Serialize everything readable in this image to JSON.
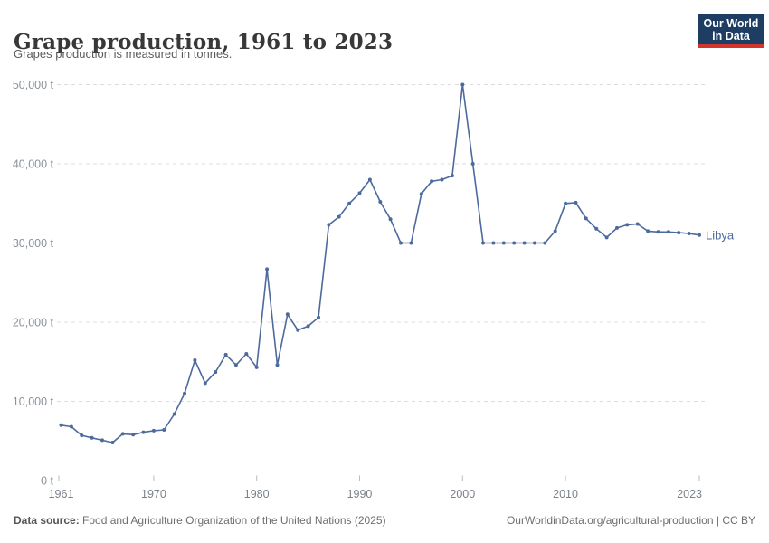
{
  "header": {
    "title": "Grape production, 1961 to 2023",
    "subtitle": "Grapes production is measured in tonnes.",
    "logo_line1": "Our World",
    "logo_line2": "in Data"
  },
  "chart_data": {
    "type": "line",
    "title": "Grape production, 1961 to 2023",
    "ylabel": "",
    "xlabel": "",
    "unit": "tonnes",
    "grid": "horizontal dashed",
    "legend_position": "end-of-line entity label",
    "series_label": "Libya",
    "xlim": [
      1961,
      2023
    ],
    "ylim": [
      0,
      50000
    ],
    "xticks": [
      1961,
      1970,
      1980,
      1990,
      2000,
      2010,
      2023
    ],
    "yticks": [
      0,
      10000,
      20000,
      30000,
      40000,
      50000
    ],
    "ytick_labels": [
      "0 t",
      "10,000 t",
      "20,000 t",
      "30,000 t",
      "40,000 t",
      "50,000 t"
    ],
    "x": [
      1961,
      1962,
      1963,
      1964,
      1965,
      1966,
      1967,
      1968,
      1969,
      1970,
      1971,
      1972,
      1973,
      1974,
      1975,
      1976,
      1977,
      1978,
      1979,
      1980,
      1981,
      1982,
      1983,
      1984,
      1985,
      1986,
      1987,
      1988,
      1989,
      1990,
      1991,
      1992,
      1993,
      1994,
      1995,
      1996,
      1997,
      1998,
      1999,
      2000,
      2001,
      2002,
      2003,
      2004,
      2005,
      2006,
      2007,
      2008,
      2009,
      2010,
      2011,
      2012,
      2013,
      2014,
      2015,
      2016,
      2017,
      2018,
      2019,
      2020,
      2021,
      2022,
      2023
    ],
    "values": [
      7000,
      6800,
      5700,
      5400,
      5100,
      4800,
      5900,
      5800,
      6100,
      6300,
      6400,
      8400,
      11000,
      15200,
      12300,
      13700,
      15900,
      14600,
      16000,
      14300,
      26700,
      14600,
      21000,
      19000,
      19500,
      20600,
      32300,
      33300,
      35000,
      36300,
      38000,
      35200,
      33000,
      30000,
      30000,
      36200,
      37800,
      38000,
      38500,
      50000,
      40000,
      30000,
      30000,
      30000,
      30000,
      30000,
      30000,
      30000,
      31500,
      35000,
      35100,
      33100,
      31800,
      30700,
      31900,
      32300,
      32400,
      31500,
      31400,
      31400,
      31300,
      31200,
      31000
    ]
  },
  "colors": {
    "line": "#4C6A9C",
    "entity_label": "#4C6A9C",
    "grid": "#dcdcdc",
    "axis": "#b7bcc1",
    "ytick_text": "#8a9199",
    "xtick_text": "#7a818a",
    "title": "#383838",
    "logo_bg": "#1d3d63",
    "logo_red": "#d1352b"
  },
  "footer": {
    "source_label": "Data source:",
    "source_text": " Food and Agriculture Organization of the United Nations (2025)",
    "link": "OurWorldinData.org/agricultural-production",
    "separator": " | ",
    "license": "CC BY"
  }
}
